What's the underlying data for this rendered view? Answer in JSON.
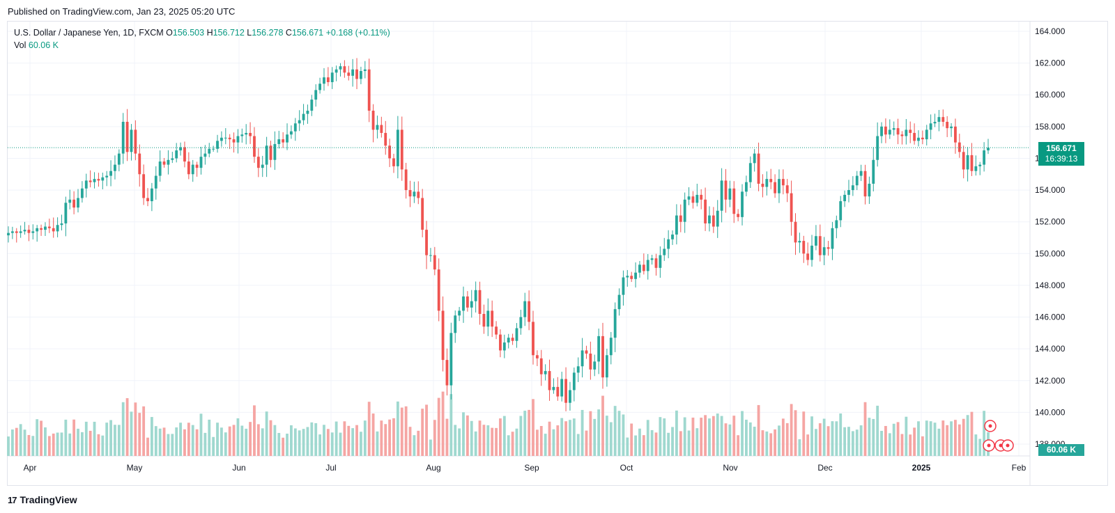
{
  "header": {
    "published": "Published on TradingView.com, Jan 23, 2025 05:20 UTC"
  },
  "legend": {
    "symbol": "U.S. Dollar / Japanese Yen, 1D, FXCM",
    "o_label": "O",
    "o_value": "156.503",
    "h_label": "H",
    "h_value": "156.712",
    "l_label": "L",
    "l_value": "156.278",
    "c_label": "C",
    "c_value": "156.671",
    "change": "+0.168 (+0.11%)",
    "vol_label": "Vol",
    "vol_value": "60.06 K"
  },
  "price_badge": {
    "price": "156.671",
    "countdown": "16:39:13"
  },
  "volume_badge": "60.06 K",
  "footer": {
    "brand": "TradingView"
  },
  "colors": {
    "up": "#26a69a",
    "down": "#ef5350",
    "vol_up": "#9fd8cf",
    "vol_down": "#f5a5a3",
    "grid": "#f0f3fa"
  },
  "chart_data": {
    "type": "candlestick",
    "symbol": "USDJPY",
    "interval": "1D",
    "y_axis": {
      "ticks": [
        "164.000",
        "162.000",
        "160.000",
        "158.000",
        "156.000",
        "154.000",
        "152.000",
        "150.000",
        "148.000",
        "146.000",
        "144.000",
        "142.000",
        "140.000",
        "138.000"
      ],
      "range": [
        137.2,
        164.5
      ]
    },
    "x_axis": {
      "ticks": [
        "Apr",
        "May",
        "Jun",
        "Jul",
        "Aug",
        "Sep",
        "Oct",
        "Nov",
        "Dec",
        "2025",
        "Feb"
      ]
    },
    "last_close": 156.671,
    "closes": [
      151.3,
      151.4,
      151.3,
      151.4,
      151.5,
      151.3,
      151.4,
      151.6,
      151.5,
      151.7,
      151.6,
      151.4,
      151.8,
      151.9,
      153.2,
      153.4,
      152.9,
      153.5,
      154.1,
      154.6,
      154.5,
      154.7,
      154.6,
      154.8,
      154.9,
      155.2,
      155.6,
      156.3,
      158.3,
      156.4,
      157.8,
      156.3,
      155.0,
      153.5,
      153.3,
      154.1,
      154.9,
      155.8,
      155.6,
      155.9,
      156.0,
      156.5,
      156.7,
      155.8,
      155.0,
      155.6,
      155.4,
      156.1,
      156.3,
      156.6,
      156.6,
      157.1,
      157.3,
      157.3,
      157.2,
      157.0,
      157.4,
      157.5,
      157.6,
      157.4,
      156.1,
      155.4,
      155.6,
      156.8,
      155.9,
      156.9,
      157.2,
      157.0,
      157.5,
      157.7,
      158.2,
      158.4,
      158.8,
      159.0,
      159.7,
      160.3,
      160.7,
      161.1,
      160.8,
      161.4,
      161.6,
      161.8,
      161.4,
      161.2,
      161.6,
      161.0,
      161.5,
      161.6,
      159.0,
      157.8,
      158.1,
      157.6,
      156.8,
      156.0,
      155.5,
      157.8,
      155.3,
      154.0,
      153.6,
      153.9,
      153.5,
      151.5,
      149.9,
      149.9,
      149.0,
      146.4,
      143.3,
      141.7,
      145.0,
      146.1,
      146.4,
      147.3,
      146.6,
      147.0,
      147.7,
      146.2,
      145.4,
      146.4,
      145.4,
      144.9,
      143.9,
      144.4,
      144.7,
      144.5,
      145.3,
      146.0,
      147.0,
      145.7,
      143.6,
      143.4,
      142.4,
      142.6,
      141.4,
      141.6,
      141.0,
      142.1,
      140.6,
      141.4,
      142.5,
      142.9,
      143.9,
      143.7,
      142.7,
      143.2,
      144.8,
      142.2,
      143.6,
      144.7,
      146.5,
      147.4,
      148.5,
      148.6,
      148.4,
      148.8,
      149.3,
      148.9,
      149.6,
      149.7,
      149.1,
      149.9,
      150.3,
      150.9,
      151.2,
      152.4,
      152.0,
      153.4,
      153.6,
      153.2,
      153.7,
      153.4,
      151.9,
      152.4,
      151.7,
      152.7,
      154.6,
      153.4,
      154.1,
      152.5,
      152.3,
      153.9,
      154.5,
      155.7,
      156.3,
      154.4,
      154.2,
      154.7,
      154.5,
      153.8,
      154.7,
      154.3,
      153.8,
      152.0,
      150.7,
      150.8,
      150.0,
      149.6,
      150.5,
      151.1,
      149.9,
      150.4,
      150.3,
      151.6,
      152.1,
      153.3,
      153.7,
      154.0,
      154.3,
      154.9,
      155.2,
      153.6,
      154.4,
      155.9,
      157.4,
      158.0,
      157.5,
      157.8,
      157.9,
      157.5,
      157.4,
      157.8,
      157.6,
      157.1,
      157.3,
      157.2,
      157.8,
      158.2,
      158.3,
      158.6,
      158.3,
      157.9,
      158.0,
      157.0,
      156.4,
      155.3,
      156.2,
      155.2,
      155.5,
      155.6,
      156.5,
      156.671
    ]
  }
}
